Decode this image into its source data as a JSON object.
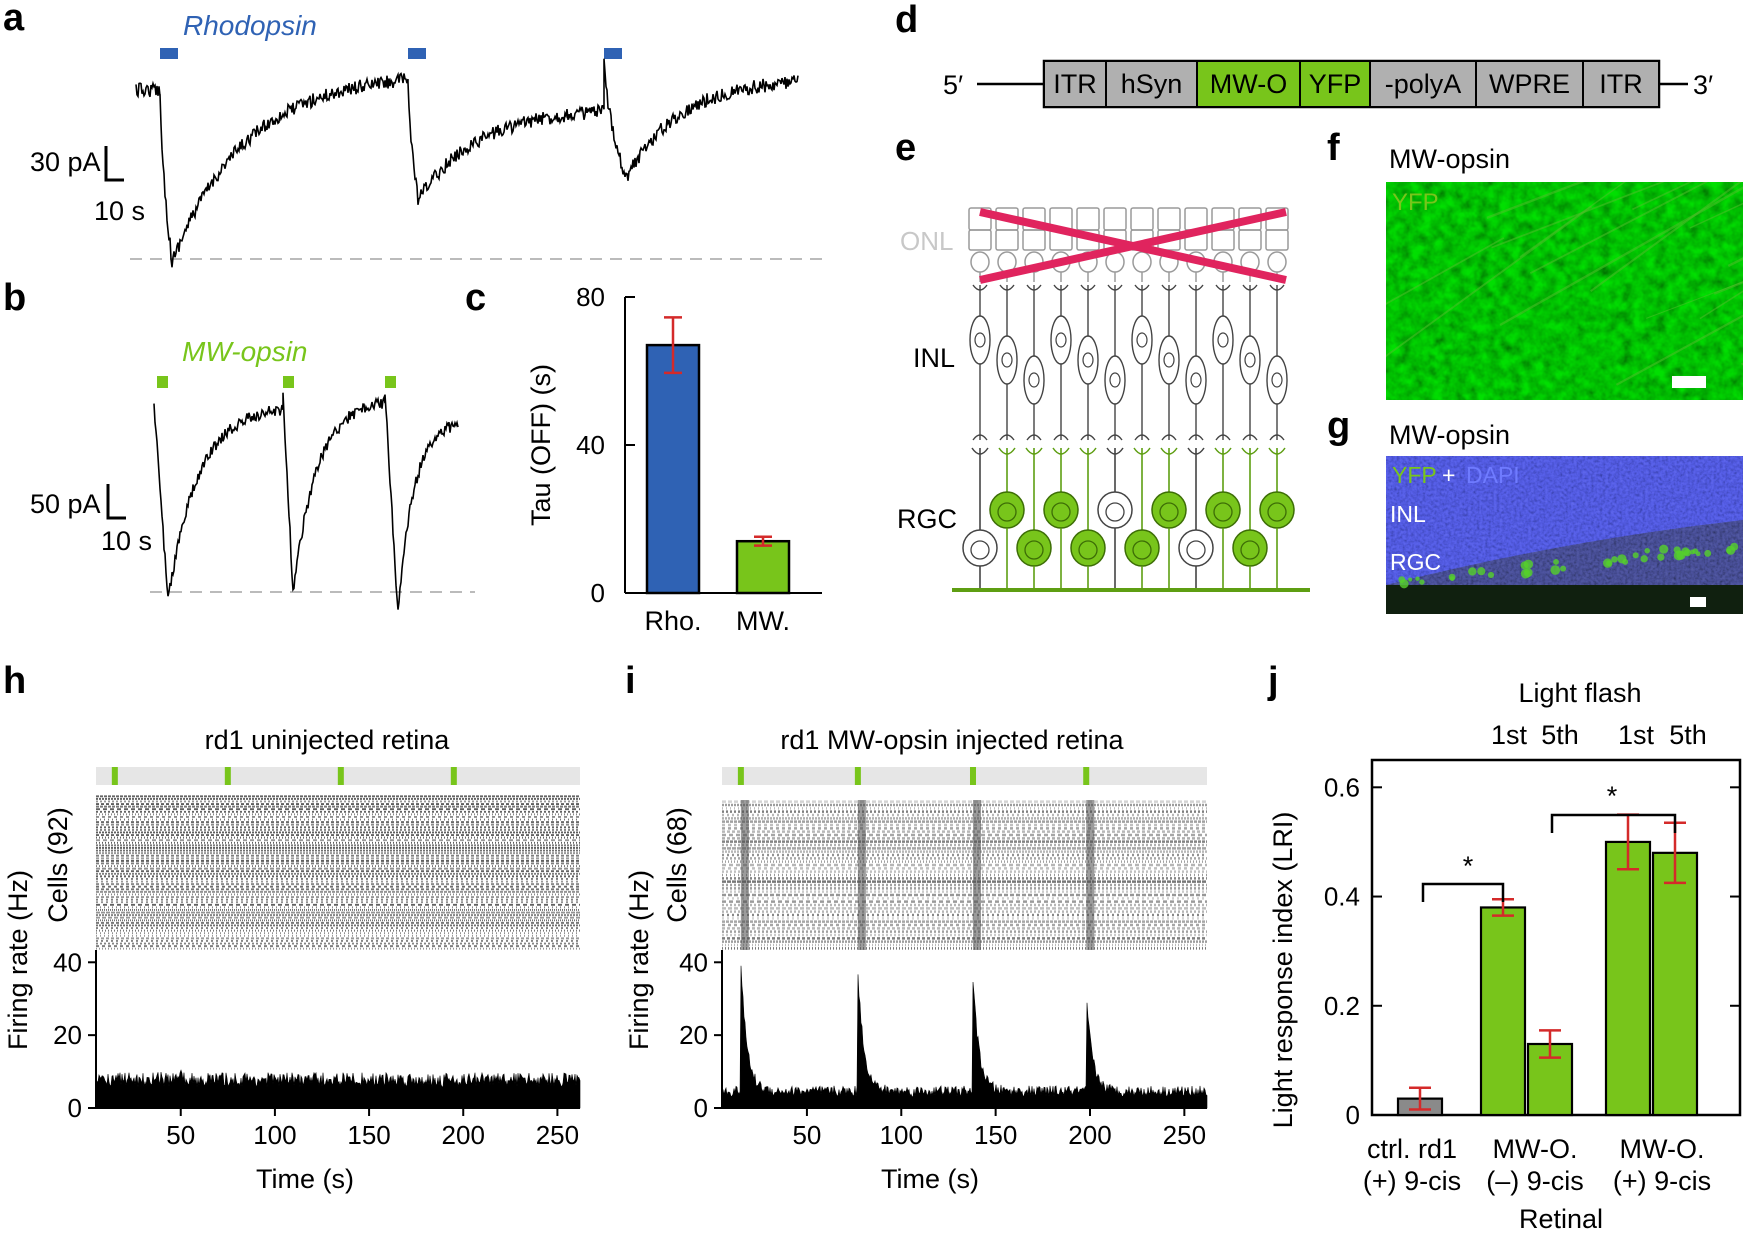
{
  "panel_letters": [
    "a",
    "b",
    "c",
    "d",
    "e",
    "f",
    "g",
    "h",
    "i",
    "j"
  ],
  "colors": {
    "blue": "#2f62b4",
    "green": "#78c51b",
    "red": "#d42a2a",
    "grey": "#8a8a8a",
    "pink": "#e0245e",
    "dapi": "#3b4fd8"
  },
  "panel_a": {
    "label": "Rhodopsin",
    "scale_y": "30 pA",
    "scale_x": "10 s",
    "stimulus_count": 3
  },
  "panel_b": {
    "label": "MW-opsin",
    "scale_y": "50 pA",
    "scale_x": "10 s",
    "stimulus_count": 3
  },
  "panel_d": {
    "five_prime": "5′",
    "three_prime": "3′",
    "segments": [
      {
        "name": "ITR",
        "color": "#b0b0b0"
      },
      {
        "name": "hSyn",
        "color": "#b0b0b0"
      },
      {
        "name": "MW-O",
        "color": "#78c51b"
      },
      {
        "name": "YFP",
        "color": "#78c51b"
      },
      {
        "name": "-polyA",
        "color": "#b0b0b0"
      },
      {
        "name": "WPRE",
        "color": "#b0b0b0"
      },
      {
        "name": "ITR",
        "color": "#b0b0b0"
      }
    ]
  },
  "panel_e": {
    "layers": [
      "ONL",
      "INL",
      "RGC"
    ]
  },
  "panel_f": {
    "title": "MW-opsin",
    "overlay": "YFP"
  },
  "panel_g": {
    "title": "MW-opsin",
    "overlay_yfp": "YFP",
    "overlay_plus": "+",
    "overlay_dapi": "DAPI",
    "layer1": "INL",
    "layer2": "RGC"
  },
  "panel_h": {
    "title": "rd1 uninjected retina",
    "cells_label": "Cells (92)",
    "ylabel": "Firing rate (Hz)",
    "xlabel": "Time (s)"
  },
  "panel_i": {
    "title": "rd1 MW-opsin injected retina",
    "cells_label": "Cells (68)",
    "ylabel": "Firing rate (Hz)",
    "xlabel": "Time (s)"
  },
  "panel_j": {
    "header": "Light flash",
    "flash_1": "1st",
    "flash_5": "5th",
    "xlabel": "Retinal",
    "ylabel": "Light response index (LRI)",
    "sig": "*",
    "group_labels": [
      {
        "line1": "ctrl. rd1",
        "line2": "(+) 9-cis"
      },
      {
        "line1": "MW-O.",
        "line2": "(–) 9-cis"
      },
      {
        "line1": "MW-O.",
        "line2": "(+) 9-cis"
      }
    ]
  },
  "chart_data": [
    {
      "id": "c",
      "type": "bar",
      "categories": [
        "Rho.",
        "MW."
      ],
      "values": [
        67,
        14
      ],
      "errors": [
        7.5,
        1.2
      ],
      "bar_colors": [
        "#2f62b4",
        "#78c51b"
      ],
      "ylabel": "Tau (OFF) (s)",
      "ylim": [
        0,
        80
      ],
      "yticks": [
        0,
        40,
        80
      ]
    },
    {
      "id": "h",
      "type": "line",
      "xlabel": "Time (s)",
      "ylabel": "Firing rate (Hz)",
      "xlim": [
        5,
        262
      ],
      "ylim": [
        0,
        42
      ],
      "xticks": [
        50,
        100,
        150,
        200,
        250
      ],
      "yticks": [
        0,
        20,
        40
      ],
      "stimulus_times": [
        15,
        75,
        135,
        195
      ],
      "baseline_hz": 7,
      "peaks_hz": [],
      "n_cells": 92
    },
    {
      "id": "i",
      "type": "line",
      "xlabel": "Time (s)",
      "ylabel": "Firing rate (Hz)",
      "xlim": [
        5,
        262
      ],
      "ylim": [
        0,
        42
      ],
      "xticks": [
        50,
        100,
        150,
        200,
        250
      ],
      "yticks": [
        0,
        20,
        40
      ],
      "stimulus_times": [
        15,
        77,
        138,
        198
      ],
      "baseline_hz": 4,
      "peaks_hz": [
        39,
        37,
        35,
        31
      ],
      "n_cells": 68
    },
    {
      "id": "j",
      "type": "bar",
      "categories": [
        "ctrl. rd1 (+) 9-cis",
        "MW-O. (–) 9-cis 1st",
        "MW-O. (–) 9-cis 5th",
        "MW-O. (+) 9-cis 1st",
        "MW-O. (+) 9-cis 5th"
      ],
      "values": [
        0.03,
        0.38,
        0.13,
        0.5,
        0.48
      ],
      "errors": [
        0.02,
        0.015,
        0.025,
        0.05,
        0.055
      ],
      "bar_colors": [
        "#8a8a8a",
        "#78c51b",
        "#78c51b",
        "#78c51b",
        "#78c51b"
      ],
      "ylabel": "Light response index (LRI)",
      "ylim": [
        0,
        0.65
      ],
      "yticks": [
        0,
        0.2,
        0.4,
        0.6
      ],
      "ytick_labels": [
        "0",
        "0.2",
        "0.4",
        "0.6"
      ]
    }
  ]
}
